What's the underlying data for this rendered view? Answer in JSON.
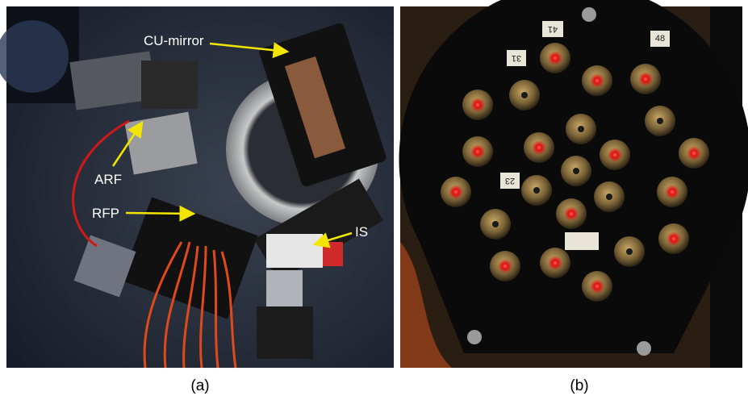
{
  "panels": [
    {
      "caption": "(a)",
      "labels": [
        "CU-mirror",
        "ARF",
        "RFP",
        "IS"
      ]
    },
    {
      "caption": "(b)",
      "plate_labels": [
        "41",
        "48",
        "31",
        "23"
      ]
    }
  ]
}
